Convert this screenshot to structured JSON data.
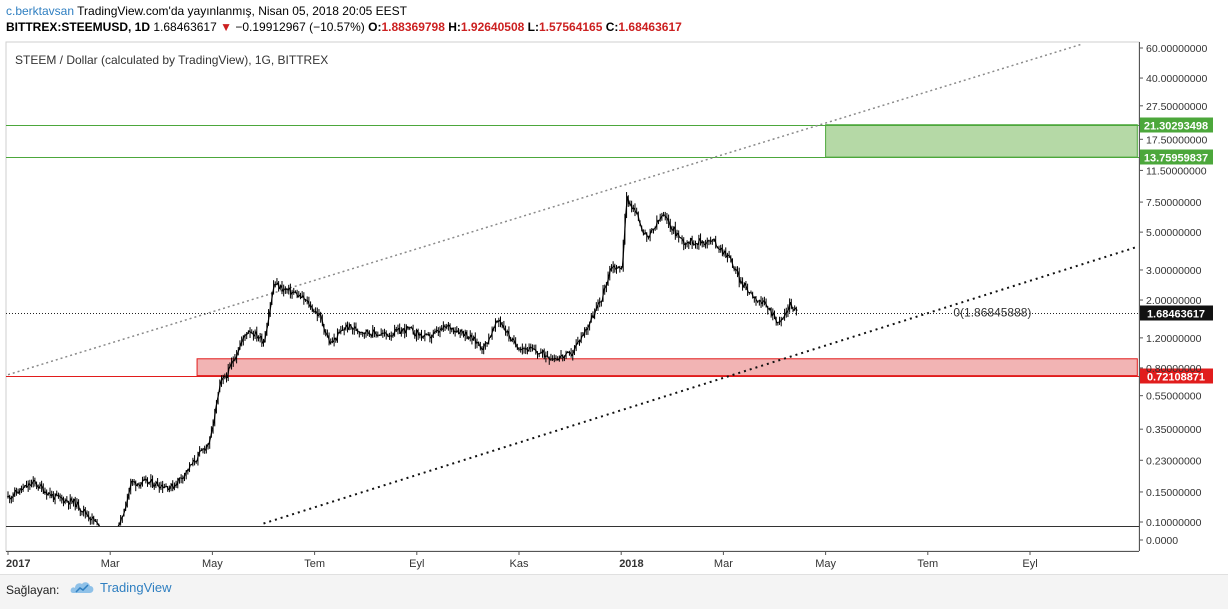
{
  "header": {
    "author": "c.berktavsan",
    "published": " TradingView.com'da yayınlanmış, Nisan 05, 2018 20:05 EEST",
    "symbol": "BITTREX:STEEMUSD, 1D",
    "last": "1.68463617",
    "change_arrow": "▼",
    "change": "−0.19912967 (−10.57%)",
    "o_label": "O:",
    "o": "1.88369798",
    "h_label": "H:",
    "h": "1.92640508",
    "l_label": "L:",
    "l": "1.57564165",
    "c_label": "C:",
    "c": "1.68463617"
  },
  "panel_title": "STEEM / Dollar (calculated by TradingView), 1G, BITTREX",
  "footer": {
    "provided_by": "Sağlayan:",
    "brand": "TradingView"
  },
  "colors": {
    "green": "#4ca73b",
    "green_fill": "#b5d9a6",
    "red": "#e11c1c",
    "red_fill": "#f2b4b4",
    "grid": "#e6e6e6"
  },
  "chart_data": {
    "type": "candlestick",
    "title": "STEEM / Dollar (calculated by TradingView), 1G, BITTREX",
    "y_scale": "log",
    "y_tick_labels": [
      "60.00000000",
      "40.00000000",
      "27.50000000",
      "17.50000000",
      "11.50000000",
      "7.50000000",
      "5.00000000",
      "3.00000000",
      "2.00000000",
      "1.20000000",
      "0.80000000",
      "0.55000000",
      "0.35000000",
      "0.23000000",
      "0.15000000",
      "0.10000000",
      "0.0000"
    ],
    "y_tick_values": [
      60,
      40,
      27.5,
      17.5,
      11.5,
      7.5,
      5.0,
      3.0,
      2.0,
      1.2,
      0.8,
      0.55,
      0.35,
      0.23,
      0.15,
      0.1,
      0
    ],
    "x_tick_labels": [
      "2017",
      "Mar",
      "May",
      "Tem",
      "Eyl",
      "Kas",
      "2018",
      "Mar",
      "May",
      "Tem",
      "Eyl"
    ],
    "x_tick_months": [
      0,
      2,
      4,
      6,
      8,
      10,
      12,
      14,
      16,
      18,
      20
    ],
    "bold_x_ticks": [
      "2017",
      "2018"
    ],
    "close_path": [
      [
        0.0,
        0.14
      ],
      [
        0.5,
        0.17
      ],
      [
        0.9,
        0.14
      ],
      [
        1.3,
        0.13
      ],
      [
        1.7,
        0.1
      ],
      [
        2.0,
        0.07
      ],
      [
        2.2,
        0.1
      ],
      [
        2.4,
        0.17
      ],
      [
        2.8,
        0.17
      ],
      [
        3.2,
        0.16
      ],
      [
        3.5,
        0.2
      ],
      [
        3.7,
        0.24
      ],
      [
        3.95,
        0.3
      ],
      [
        4.05,
        0.45
      ],
      [
        4.15,
        0.65
      ],
      [
        4.3,
        0.75
      ],
      [
        4.5,
        1.05
      ],
      [
        4.7,
        1.35
      ],
      [
        5.0,
        1.15
      ],
      [
        5.2,
        2.5
      ],
      [
        5.4,
        2.3
      ],
      [
        5.6,
        2.2
      ],
      [
        5.8,
        2.0
      ],
      [
        6.1,
        1.6
      ],
      [
        6.3,
        1.1
      ],
      [
        6.6,
        1.4
      ],
      [
        7.0,
        1.3
      ],
      [
        7.4,
        1.25
      ],
      [
        7.8,
        1.35
      ],
      [
        8.2,
        1.2
      ],
      [
        8.6,
        1.4
      ],
      [
        8.9,
        1.3
      ],
      [
        9.3,
        1.05
      ],
      [
        9.6,
        1.55
      ],
      [
        9.9,
        1.1
      ],
      [
        10.3,
        1.0
      ],
      [
        10.7,
        0.92
      ],
      [
        11.0,
        0.95
      ],
      [
        11.3,
        1.35
      ],
      [
        11.6,
        2.0
      ],
      [
        11.8,
        3.2
      ],
      [
        12.0,
        3.0
      ],
      [
        12.1,
        8.0
      ],
      [
        12.3,
        6.3
      ],
      [
        12.5,
        4.5
      ],
      [
        12.8,
        6.3
      ],
      [
        13.2,
        4.4
      ],
      [
        13.5,
        4.4
      ],
      [
        13.8,
        4.4
      ],
      [
        14.1,
        3.6
      ],
      [
        14.35,
        2.5
      ],
      [
        14.6,
        2.1
      ],
      [
        14.9,
        1.75
      ],
      [
        15.1,
        1.45
      ],
      [
        15.3,
        1.9
      ],
      [
        15.45,
        1.68
      ]
    ],
    "horizontal_lines": [
      {
        "label": "21.30293498",
        "value": 21.30293498,
        "color": "green"
      },
      {
        "label": "13.75959837",
        "value": 13.75959837,
        "color": "green"
      },
      {
        "label": "0.72108871",
        "value": 0.72108871,
        "color": "red"
      }
    ],
    "current_price_line": {
      "label": "1.68463617",
      "value": 1.68463617
    },
    "zones": [
      {
        "name": "target-zone",
        "color": "green",
        "from_month": 16.0,
        "to_month": 22.1,
        "low": 13.75959837,
        "high": 21.30293498
      },
      {
        "name": "support-zone",
        "color": "red",
        "from_month": 3.7,
        "to_month": 22.1,
        "low": 0.72108871,
        "high": 0.905
      }
    ],
    "trendlines": [
      {
        "name": "upper-channel",
        "style": "dotted-gray",
        "from": [
          0.0,
          0.73
        ],
        "to": [
          21.0,
          63.0
        ]
      },
      {
        "name": "lower-channel",
        "style": "dotted-black",
        "from": [
          5.0,
          0.098
        ],
        "to": [
          22.1,
          4.1
        ]
      }
    ],
    "annotations": [
      {
        "text": "0(1.86845888)",
        "month": 18.5,
        "value": 1.68463617
      }
    ]
  }
}
